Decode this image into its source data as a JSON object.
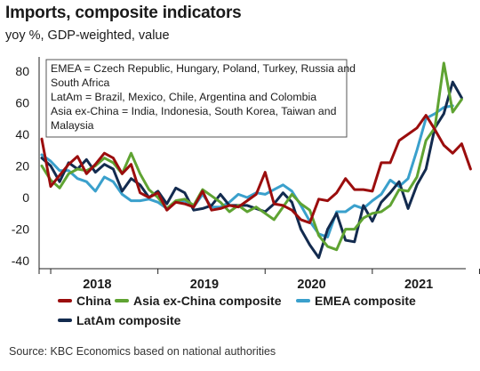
{
  "header": {
    "title": "Imports, composite indicators",
    "subtitle": "yoy %, GDP-weighted, value"
  },
  "footer": {
    "source": "Source: KBC Economics based on national authorities"
  },
  "colors": {
    "China": "#9b0d0d",
    "Asia ex-China composite": "#5fa332",
    "EMEA composite": "#3aa0cc",
    "LatAm composite": "#132b4f"
  },
  "chart_data": {
    "type": "line",
    "title": "Imports, composite indicators",
    "subtitle": "yoy %, GDP-weighted, value",
    "xlabel": "",
    "ylabel": "",
    "ylim": [
      -45,
      90
    ],
    "yticks": [
      -40,
      -20,
      0,
      20,
      40,
      60,
      80
    ],
    "x_start": "2017-12",
    "x_ticks": [
      "2018",
      "2019",
      "2020",
      "2021"
    ],
    "grid": false,
    "legend_position": "bottom",
    "annotation": [
      "EMEA = Czech Republic, Hungary, Poland, Turkey, Russia and",
      "South Africa",
      "LatAm = Brazil, Mexico, Chile, Argentina and Colombia",
      "Asia ex-China = India, Indonesia, South Korea, Taiwan and",
      "Malaysia"
    ],
    "series": [
      {
        "name": "China",
        "values": [
          37,
          7,
          14,
          21,
          26,
          15,
          21,
          28,
          25,
          15,
          21,
          3,
          0,
          3,
          -8,
          -3,
          -4,
          -6,
          4,
          -8,
          -7,
          -5,
          -6,
          -2,
          2,
          16,
          -4,
          -5,
          -8,
          -14,
          -16,
          -1,
          -2,
          3,
          12,
          5,
          5,
          4,
          22,
          22,
          36,
          40,
          44,
          52,
          43,
          33,
          28,
          34,
          18
        ]
      },
      {
        "name": "Asia ex-China composite",
        "values": [
          20,
          11,
          6,
          15,
          18,
          17,
          20,
          25,
          22,
          15,
          28,
          15,
          5,
          0,
          -7,
          -2,
          -1,
          -5,
          5,
          1,
          -3,
          -9,
          -5,
          -9,
          -6,
          -10,
          -14,
          -6,
          2,
          -4,
          -8,
          -24,
          -31,
          -33,
          -20,
          -20,
          -13,
          -10,
          -9,
          -5,
          5,
          4,
          13,
          36,
          44,
          85,
          54,
          62
        ]
      },
      {
        "name": "EMEA composite",
        "values": [
          27,
          23,
          17,
          17,
          12,
          10,
          4,
          13,
          10,
          2,
          -2,
          -2,
          -1,
          -3,
          -7,
          -3,
          -2,
          -6,
          2,
          -6,
          -6,
          -3,
          2,
          0,
          3,
          2,
          5,
          8,
          4,
          -5,
          -15,
          -23,
          -25,
          -9,
          -9,
          -5,
          -7,
          -2,
          2,
          11,
          7,
          12,
          30,
          50,
          53,
          57,
          58
        ]
      },
      {
        "name": "LatAm composite",
        "values": [
          25,
          20,
          10,
          22,
          18,
          24,
          16,
          21,
          18,
          4,
          12,
          8,
          0,
          4,
          -4,
          6,
          3,
          -8,
          -7,
          -5,
          2,
          -5,
          -5,
          -5,
          -7,
          -9,
          -4,
          3,
          -3,
          -20,
          -30,
          -38,
          -20,
          -10,
          -27,
          -28,
          -5,
          -15,
          -3,
          3,
          10,
          -7,
          8,
          18,
          44,
          53,
          73,
          63
        ]
      }
    ]
  }
}
